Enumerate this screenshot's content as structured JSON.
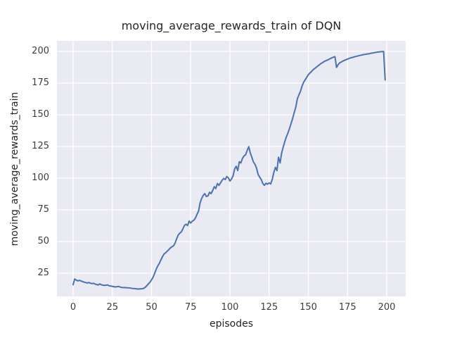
{
  "chart_data": {
    "type": "line",
    "title": "moving_average_rewards_train of DQN",
    "xlabel": "episodes",
    "ylabel": "moving_average_rewards_train",
    "x_ticks": [
      0,
      25,
      50,
      75,
      100,
      125,
      150,
      175,
      200
    ],
    "y_ticks": [
      25,
      50,
      75,
      100,
      125,
      150,
      175,
      200
    ],
    "xlim": [
      -10.3,
      212.1
    ],
    "ylim": [
      6.7,
      208.3
    ],
    "grid": true,
    "legend": "none",
    "style": "seaborn-darkgrid",
    "colors": {
      "line": "#4c72b0",
      "plot_background": "#eaeaf2",
      "grid": "#ffffff",
      "text": "#262626",
      "tick_text": "#3d3d3d"
    },
    "series": [
      {
        "name": "DQN",
        "x_start": 0,
        "x_step": 1,
        "y": [
          16.0,
          20.5,
          19.6,
          19.0,
          19.4,
          18.9,
          18.5,
          18.0,
          17.7,
          17.3,
          17.7,
          17.2,
          16.8,
          17.1,
          16.5,
          16.1,
          15.8,
          16.6,
          16.0,
          15.6,
          15.4,
          15.6,
          15.8,
          15.1,
          14.9,
          14.7,
          14.4,
          14.2,
          14.4,
          14.6,
          14.1,
          13.8,
          13.7,
          13.7,
          13.6,
          13.5,
          13.4,
          13.2,
          13.0,
          12.9,
          12.8,
          12.6,
          12.6,
          12.7,
          12.8,
          13.1,
          13.9,
          15.2,
          16.6,
          17.9,
          19.8,
          21.8,
          24.8,
          28.2,
          30.8,
          32.8,
          35.6,
          38.1,
          40.2,
          41.2,
          42.4,
          43.6,
          44.9,
          45.9,
          46.6,
          48.6,
          52.2,
          55.1,
          56.6,
          57.6,
          60.0,
          62.6,
          63.7,
          62.6,
          66.1,
          64.6,
          66.1,
          66.8,
          68.5,
          71.5,
          74.0,
          80.5,
          84.0,
          86.5,
          87.8,
          85.5,
          86.0,
          88.9,
          87.8,
          90.3,
          93.3,
          91.8,
          95.8,
          94.3,
          96.3,
          98.3,
          99.8,
          98.9,
          101.3,
          100.2,
          97.8,
          99.3,
          101.9,
          107.2,
          109.4,
          106.0,
          113.0,
          112.0,
          115.6,
          117.5,
          118.5,
          121.8,
          124.8,
          119.8,
          116.5,
          112.8,
          110.9,
          107.8,
          103.0,
          100.7,
          98.9,
          95.8,
          94.3,
          96.0,
          95.2,
          96.3,
          95.4,
          99.0,
          104.5,
          108.5,
          106.0,
          116.5,
          112.0,
          120.0,
          124.5,
          129.0,
          132.6,
          135.6,
          139.1,
          143.1,
          147.1,
          151.6,
          156.1,
          162.6,
          165.6,
          168.6,
          172.6,
          175.6,
          177.6,
          179.6,
          181.6,
          182.9,
          184.1,
          185.4,
          186.4,
          187.4,
          188.4,
          189.3,
          190.3,
          191.1,
          191.9,
          192.5,
          193.1,
          193.6,
          194.3,
          194.9,
          195.4,
          195.8,
          187.3,
          189.6,
          190.9,
          191.6,
          192.3,
          192.9,
          193.4,
          193.9,
          194.4,
          194.9,
          195.2,
          195.5,
          195.9,
          196.2,
          196.5,
          196.8,
          197.1,
          197.4,
          197.6,
          197.8,
          198.0,
          198.2,
          198.5,
          198.7,
          199.0,
          199.2,
          199.4,
          199.6,
          199.7,
          199.8,
          199.9,
          177.5
        ]
      }
    ]
  }
}
